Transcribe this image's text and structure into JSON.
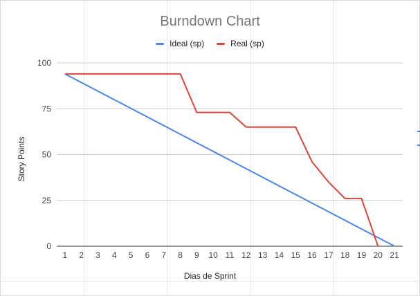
{
  "chart_data": {
    "type": "line",
    "title": "Burndown Chart",
    "xlabel": "Dias de Sprint",
    "ylabel": "Story Points",
    "x": [
      1,
      2,
      3,
      4,
      5,
      6,
      7,
      8,
      9,
      10,
      11,
      12,
      13,
      14,
      15,
      16,
      17,
      18,
      19,
      20,
      21
    ],
    "ylim": [
      0,
      100
    ],
    "yticks": [
      0,
      25,
      50,
      75,
      100
    ],
    "grid": true,
    "legend": "top",
    "series": [
      {
        "name": "Ideal (sp)",
        "color": "#4a86e8",
        "points": [
          [
            1,
            94
          ],
          [
            21,
            0
          ]
        ]
      },
      {
        "name": "Real (sp)",
        "color": "#db4437",
        "points": [
          [
            1,
            94
          ],
          [
            2,
            94
          ],
          [
            3,
            94
          ],
          [
            4,
            94
          ],
          [
            5,
            94
          ],
          [
            6,
            94
          ],
          [
            7,
            94
          ],
          [
            8,
            94
          ],
          [
            9,
            73
          ],
          [
            10,
            73
          ],
          [
            11,
            73
          ],
          [
            12,
            65
          ],
          [
            13,
            65
          ],
          [
            14,
            65
          ],
          [
            15,
            65
          ],
          [
            16,
            46
          ],
          [
            17,
            35
          ],
          [
            18,
            26
          ],
          [
            19,
            26
          ],
          [
            20,
            0
          ]
        ]
      }
    ]
  }
}
